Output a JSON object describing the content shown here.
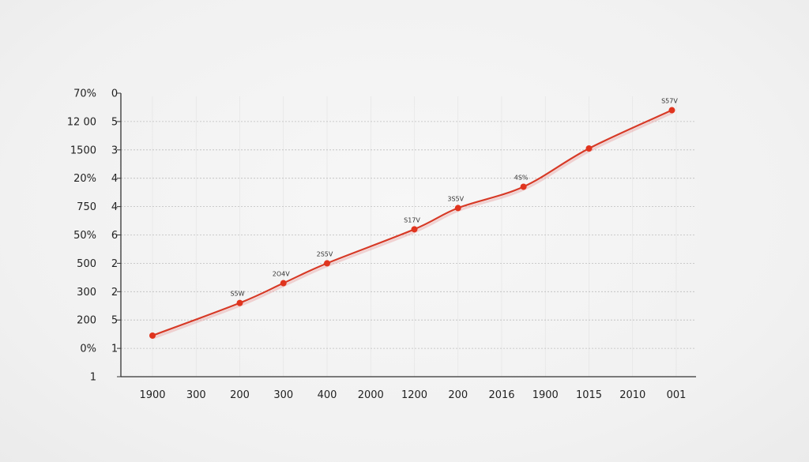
{
  "chart_data": {
    "type": "line",
    "title": "",
    "xlabel": "",
    "ylabel": "",
    "grid": true,
    "legend": "none",
    "colors": {
      "line": "#d73a27",
      "point": "#e0341e",
      "axis": "#333333",
      "grid": "#bdbdbd"
    },
    "x_tick_labels": [
      "1900",
      "300",
      "200",
      "300",
      "400",
      "2000",
      "1200",
      "200",
      "2016",
      "1900",
      "1015",
      "2010",
      "001"
    ],
    "y_tick_labels": [
      {
        "outer": "1",
        "inner": ""
      },
      {
        "outer": "0%",
        "inner": "1"
      },
      {
        "outer": "200",
        "inner": "5"
      },
      {
        "outer": "300",
        "inner": "2"
      },
      {
        "outer": "500",
        "inner": "2"
      },
      {
        "outer": "50%",
        "inner": "6"
      },
      {
        "outer": "750",
        "inner": "4"
      },
      {
        "outer": "20%",
        "inner": "4"
      },
      {
        "outer": "1500",
        "inner": "3"
      },
      {
        "outer": "12 00",
        "inner": "5"
      },
      {
        "outer": "70%",
        "inner": "0"
      }
    ],
    "x_range": [
      -0.75,
      12.2
    ],
    "y_range": [
      0,
      10
    ],
    "series": [
      {
        "points": [
          {
            "x": 0,
            "y": 1.45,
            "label": ""
          },
          {
            "x": 2,
            "y": 2.6,
            "label": "S5W"
          },
          {
            "x": 3,
            "y": 3.3,
            "label": "2O4V"
          },
          {
            "x": 4,
            "y": 4.0,
            "label": "2S5V"
          },
          {
            "x": 6,
            "y": 5.2,
            "label": "S17V"
          },
          {
            "x": 7,
            "y": 5.95,
            "label": "3S5V"
          },
          {
            "x": 8.5,
            "y": 6.7,
            "label": "4S%"
          },
          {
            "x": 10,
            "y": 8.05,
            "label": ""
          },
          {
            "x": 11.9,
            "y": 9.4,
            "label": "S57V"
          }
        ]
      }
    ]
  }
}
